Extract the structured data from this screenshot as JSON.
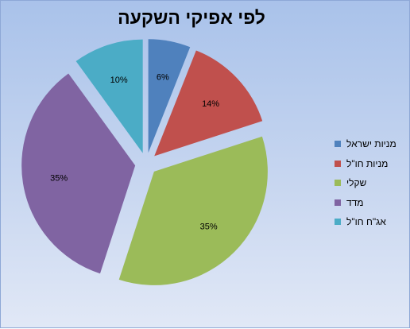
{
  "chart_data": {
    "type": "pie",
    "title": "לפי אפיקי השקעה",
    "legend_position": "right",
    "series": [
      {
        "name": "מניות ישראל",
        "value": 6,
        "label": "6%",
        "color": "#4f81bd"
      },
      {
        "name": "מניות חו\"ל",
        "value": 14,
        "label": "14%",
        "color": "#c0504d"
      },
      {
        "name": "שקלי",
        "value": 35,
        "label": "35%",
        "color": "#9bbb59"
      },
      {
        "name": "מדד",
        "value": 35,
        "label": "35%",
        "color": "#8064a2"
      },
      {
        "name": "אג\"ח חו\"ל",
        "value": 10,
        "label": "10%",
        "color": "#4bacc6"
      }
    ]
  }
}
